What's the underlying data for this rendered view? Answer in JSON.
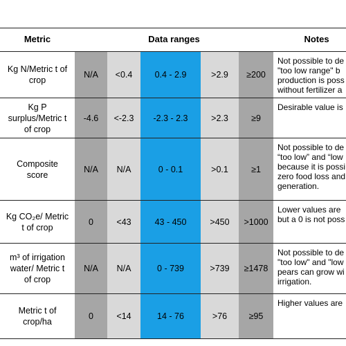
{
  "header": {
    "metric": "Metric",
    "data_ranges": "Data ranges",
    "notes": "Notes"
  },
  "rows": [
    {
      "metric": "Kg N/Metric t of crop",
      "ranges": [
        "N/A",
        "<0.4",
        "0.4 - 2.9",
        ">2.9",
        "≥200"
      ],
      "notes": [
        "Not possible to de",
        "\"too low range\" b",
        "production is poss",
        "without fertilizer a"
      ]
    },
    {
      "metric": "Kg P surplus/Metric t of crop",
      "ranges": [
        "-4.6",
        "<-2.3",
        "-2.3 - 2.3",
        ">2.3",
        "≥9"
      ],
      "notes": [
        "Desirable value is"
      ]
    },
    {
      "metric": "Composite score",
      "ranges": [
        "N/A",
        "N/A",
        "0 - 0.1",
        ">0.1",
        "≥1"
      ],
      "notes": [
        "Not possible to de",
        "“too low” and “low",
        "because it is possi",
        "zero food loss and",
        "generation."
      ]
    },
    {
      "metric": "Kg CO₂e/ Metric t of crop",
      "ranges": [
        "0",
        "<43",
        "43 - 450",
        ">450",
        ">1000"
      ],
      "notes": [
        "Lower values are",
        "but a 0 is not poss"
      ]
    },
    {
      "metric": "m³ of irrigation water/ Metric t of crop",
      "ranges": [
        "N/A",
        "N/A",
        "0 - 739",
        ">739",
        "≥1478"
      ],
      "notes": [
        "Not possible to de",
        "\"too low\" and \"low",
        "pears can grow wi",
        "irrigation."
      ]
    },
    {
      "metric": "Metric t of crop/ha",
      "ranges": [
        "0",
        "<14",
        "14 - 76",
        ">76",
        "≥95"
      ],
      "notes": [
        "Higher values are"
      ]
    }
  ]
}
